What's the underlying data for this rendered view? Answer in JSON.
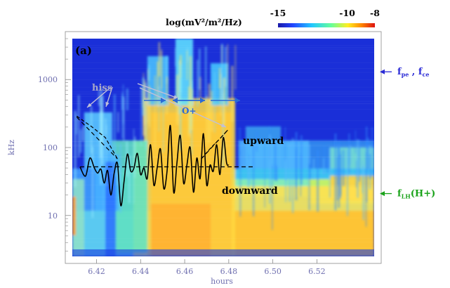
{
  "chart_data": {
    "type": "heatmap",
    "title": "",
    "xlabel": "hours",
    "ylabel": "kHz",
    "x_ticks": [
      "6.42",
      "6.44",
      "6.46",
      "6.48",
      "6.50",
      "6.52"
    ],
    "x_tick_values": [
      6.42,
      6.44,
      6.46,
      6.48,
      6.5,
      6.52
    ],
    "y_ticks": [
      "10",
      "100",
      "1000"
    ],
    "y_tick_values": [
      10,
      100,
      1000
    ],
    "xlim": [
      6.409,
      6.546
    ],
    "ylim": [
      2.5,
      4000
    ],
    "y_scale": "log",
    "colorbar": {
      "title": "log(mV²/m²/Hz)",
      "ticks": [
        "-15",
        "-10",
        "-8"
      ],
      "tick_values": [
        -15,
        -10,
        -8
      ],
      "range": [
        -15,
        -8
      ]
    },
    "panel_label": "(a)",
    "annotations": {
      "hiss": "hiss",
      "oplus": "O+",
      "upward": "upward",
      "downward": "downward"
    },
    "right_markers": [
      {
        "label_main": "f",
        "label_sub": "pe",
        "sep": " , ",
        "label_main2": "f",
        "label_sub2": "ce",
        "y": 1300,
        "color": "#2b2bd6"
      },
      {
        "label_main": "f",
        "label_sub": "LH",
        "suffix": "(H+)",
        "y": 21,
        "color": "#1aa31a"
      }
    ],
    "overlay_curve": {
      "name": "",
      "x": [
        6.4125,
        6.415,
        6.417,
        6.419,
        6.4205,
        6.422,
        6.4235,
        6.425,
        6.4265,
        6.428,
        6.4295,
        6.431,
        6.4325,
        6.434,
        6.4355,
        6.437,
        6.4385,
        6.44,
        6.4415,
        6.443,
        6.4445,
        6.446,
        6.4475,
        6.449,
        6.4505,
        6.452,
        6.4535,
        6.455,
        6.4565,
        6.458,
        6.4595,
        6.461,
        6.4625,
        6.464,
        6.4655,
        6.467,
        6.4685,
        6.47,
        6.4715,
        6.473,
        6.4745,
        6.476,
        6.4775,
        6.479,
        6.48
      ],
      "y": [
        52,
        38,
        70,
        50,
        42,
        48,
        30,
        46,
        20,
        42,
        58,
        14,
        32,
        80,
        45,
        50,
        82,
        40,
        50,
        35,
        110,
        28,
        50,
        95,
        25,
        45,
        210,
        22,
        60,
        150,
        30,
        55,
        100,
        22,
        70,
        35,
        160,
        28,
        55,
        45,
        110,
        40,
        140,
        60,
        55
      ]
    },
    "reference_lines": [
      {
        "name": "",
        "style": "dashed",
        "x": [
          6.411,
          6.4295
        ],
        "y": [
          280,
          68
        ]
      },
      {
        "name": "",
        "style": "dashed",
        "x": [
          6.4675,
          6.4795
        ],
        "y": [
          68,
          180
        ]
      },
      {
        "name": "",
        "style": "dashed",
        "x": [
          6.4125,
          6.492
        ],
        "y": [
          52,
          52
        ]
      }
    ]
  }
}
